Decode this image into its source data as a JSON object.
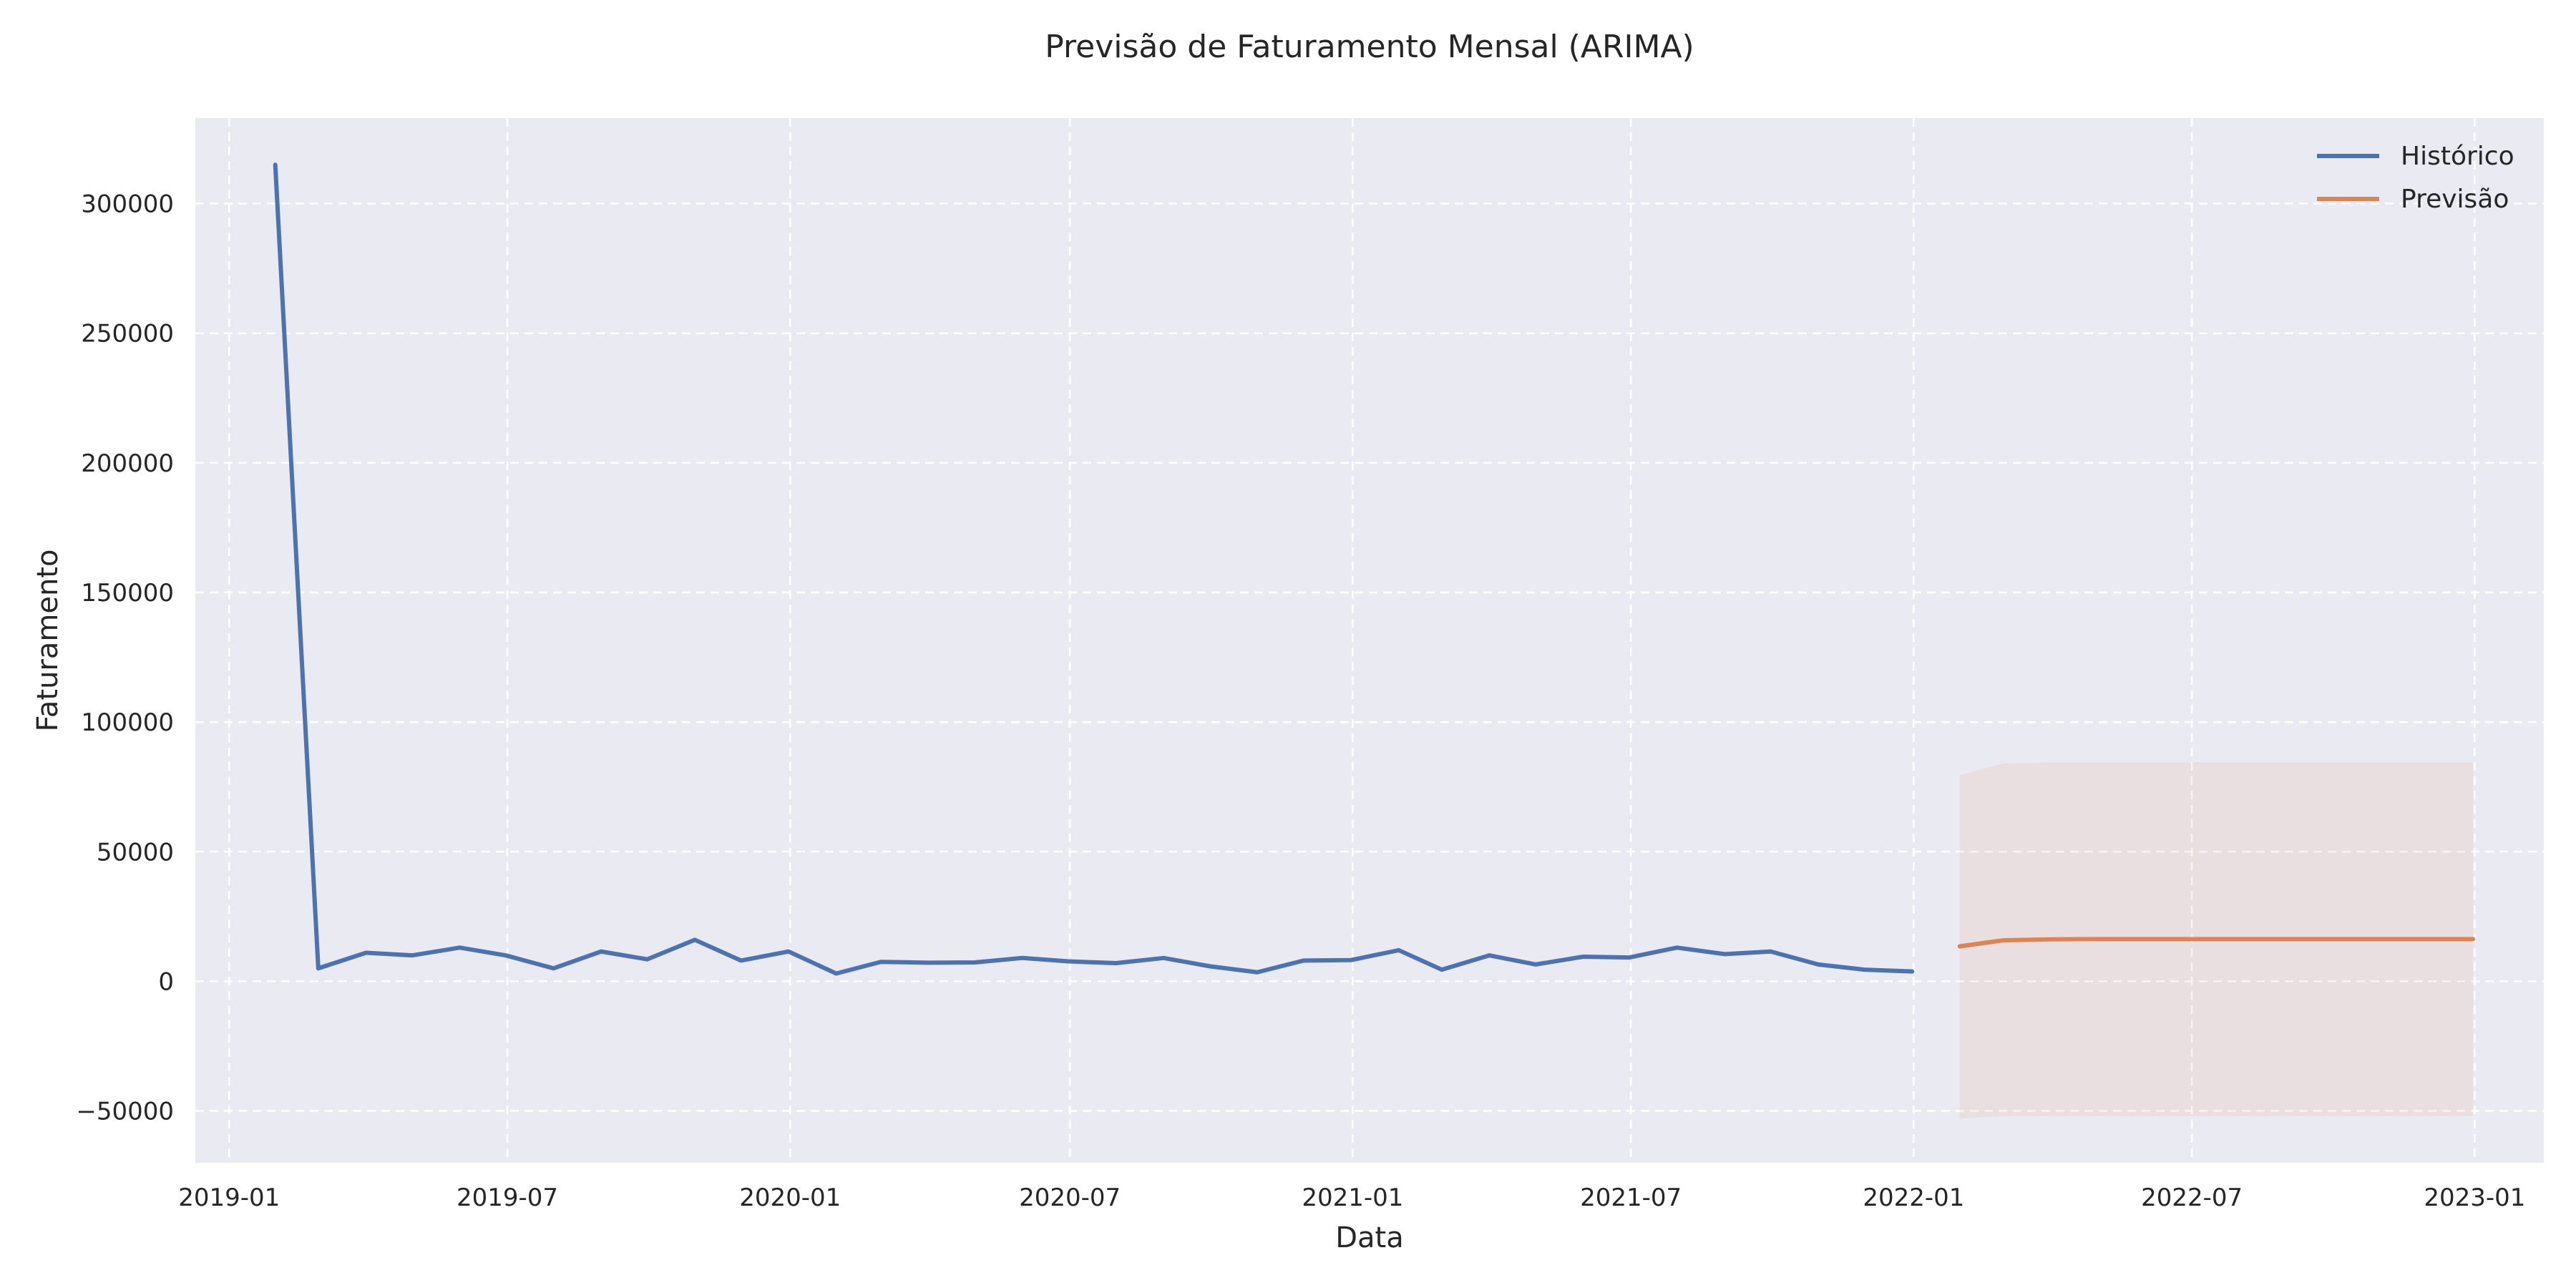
{
  "chart_data": {
    "type": "line",
    "title": "Previsão de Faturamento Mensal (ARIMA)",
    "xlabel": "Data",
    "ylabel": "Faturamento",
    "xlim": [
      "2018-12-10",
      "2023-02-15"
    ],
    "ylim": [
      -70000,
      333000
    ],
    "x_ticks": [
      "2019-01",
      "2019-07",
      "2020-01",
      "2020-07",
      "2021-01",
      "2021-07",
      "2022-01",
      "2022-07",
      "2023-01"
    ],
    "y_ticks": [
      -50000,
      0,
      50000,
      100000,
      150000,
      200000,
      250000,
      300000
    ],
    "grid": true,
    "legend_position": "top-right",
    "series": [
      {
        "name": "Histórico",
        "color": "#4c72b0",
        "x": [
          "2019-01-31",
          "2019-02-28",
          "2019-03-31",
          "2019-04-30",
          "2019-05-31",
          "2019-06-30",
          "2019-07-31",
          "2019-08-31",
          "2019-09-30",
          "2019-10-31",
          "2019-11-30",
          "2019-12-31",
          "2020-01-31",
          "2020-02-29",
          "2020-03-31",
          "2020-04-30",
          "2020-05-31",
          "2020-06-30",
          "2020-07-31",
          "2020-08-31",
          "2020-09-30",
          "2020-10-31",
          "2020-11-30",
          "2020-12-31",
          "2021-01-31",
          "2021-02-28",
          "2021-03-31",
          "2021-04-30",
          "2021-05-31",
          "2021-06-30",
          "2021-07-31",
          "2021-08-31",
          "2021-09-30",
          "2021-10-31",
          "2021-11-30",
          "2021-12-31"
        ],
        "values": [
          315000,
          5000,
          11000,
          10000,
          13000,
          10000,
          5000,
          11500,
          8500,
          16000,
          8000,
          11500,
          3000,
          7500,
          7200,
          7300,
          9000,
          7700,
          7000,
          9000,
          5800,
          3500,
          8000,
          8200,
          12000,
          4500,
          10000,
          6500,
          9500,
          9200,
          13000,
          10500,
          11500,
          6500,
          4500,
          3800
        ]
      },
      {
        "name": "Previsão",
        "color": "#dd8452",
        "x": [
          "2022-01-31",
          "2022-02-28",
          "2022-03-31",
          "2022-04-30",
          "2022-05-31",
          "2022-06-30",
          "2022-07-31",
          "2022-08-31",
          "2022-09-30",
          "2022-10-31",
          "2022-11-30",
          "2022-12-31"
        ],
        "values": [
          13500,
          15800,
          16200,
          16300,
          16300,
          16300,
          16300,
          16300,
          16300,
          16300,
          16300,
          16300
        ],
        "interval_lower": [
          -53000,
          -52000,
          -52000,
          -52000,
          -52000,
          -52000,
          -52000,
          -52000,
          -52000,
          -52000,
          -52000,
          -52000
        ],
        "interval_upper": [
          79500,
          84000,
          84500,
          84500,
          84500,
          84500,
          84500,
          84500,
          84500,
          84500,
          84500,
          84500
        ]
      }
    ],
    "interval_color": "#dd8452",
    "background_color": "#eaeaf2",
    "grid_color": "#ffffff"
  }
}
